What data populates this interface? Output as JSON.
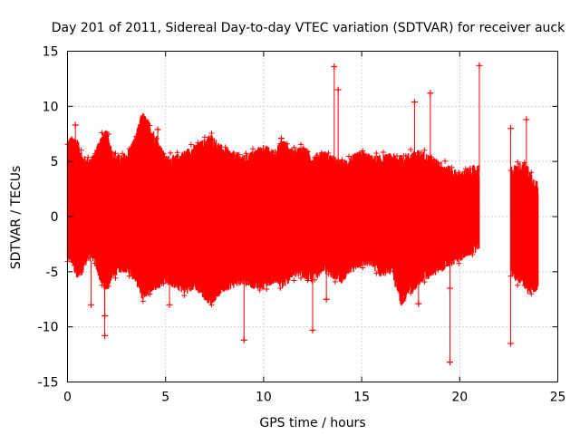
{
  "chart_data": {
    "type": "scatter",
    "title": "Day 201 of 2011, Sidereal Day-to-day VTEC variation (SDTVAR) for receiver auck",
    "xlabel": "GPS time / hours",
    "ylabel": "SDTVAR / TECUs",
    "xlim": [
      0,
      25
    ],
    "ylim": [
      -15,
      15
    ],
    "xticks": [
      "0",
      "5",
      "10",
      "15",
      "20",
      "25"
    ],
    "yticks": [
      "-15",
      "-10",
      "-5",
      "0",
      "5",
      "10",
      "15"
    ],
    "grid": true,
    "series_color": "#ff0000",
    "envelope": {
      "hours": [
        0.0,
        0.3,
        0.5,
        0.8,
        1.0,
        1.3,
        1.6,
        1.8,
        2.0,
        2.3,
        2.7,
        3.0,
        3.5,
        3.8,
        4.2,
        4.6,
        5.0,
        5.5,
        6.0,
        6.5,
        7.0,
        7.3,
        7.8,
        8.3,
        9.0,
        9.5,
        10.0,
        10.5,
        11.0,
        11.5,
        12.0,
        12.5,
        13.0,
        13.5,
        14.0,
        14.5,
        15.0,
        15.5,
        16.0,
        16.5,
        17.0,
        17.5,
        18.0,
        18.5,
        19.0,
        19.5,
        20.0,
        20.5,
        21.0
      ],
      "upper": [
        6.5,
        6.8,
        6.5,
        5.0,
        4.8,
        5.0,
        6.5,
        7.0,
        7.3,
        5.5,
        5.0,
        5.2,
        7.0,
        9.0,
        8.0,
        6.5,
        5.0,
        5.0,
        5.5,
        6.0,
        6.5,
        7.0,
        6.0,
        5.5,
        5.0,
        5.5,
        6.0,
        5.5,
        6.5,
        5.5,
        6.0,
        5.0,
        5.5,
        5.0,
        4.5,
        5.0,
        5.5,
        5.0,
        5.0,
        5.2,
        5.0,
        5.3,
        5.5,
        5.0,
        4.5,
        4.0,
        3.5,
        4.0,
        4.2
      ],
      "lower": [
        -3.5,
        -4.0,
        -5.5,
        -4.5,
        -3.5,
        -3.5,
        -5.0,
        -6.0,
        -6.2,
        -5.0,
        -4.5,
        -4.5,
        -5.5,
        -7.0,
        -6.5,
        -6.0,
        -5.5,
        -6.0,
        -6.5,
        -6.0,
        -7.0,
        -7.5,
        -6.5,
        -6.0,
        -5.5,
        -6.0,
        -6.0,
        -5.5,
        -6.0,
        -5.0,
        -5.0,
        -5.5,
        -4.5,
        -5.0,
        -5.5,
        -4.5,
        -4.0,
        -4.0,
        -5.0,
        -4.5,
        -7.5,
        -6.5,
        -5.5,
        -5.0,
        -4.5,
        -4.0,
        -3.5,
        -3.0,
        -2.5
      ]
    },
    "envelope2": {
      "hours": [
        22.6,
        22.9,
        23.2,
        23.5,
        23.8,
        24.0
      ],
      "upper": [
        4.0,
        4.2,
        4.5,
        4.0,
        3.0,
        2.5
      ],
      "lower": [
        -5.0,
        -5.5,
        -5.5,
        -6.5,
        -6.5,
        -6.0
      ]
    },
    "outliers": [
      {
        "x": 13.6,
        "y": 13.6
      },
      {
        "x": 21.0,
        "y": 13.7
      },
      {
        "x": 18.5,
        "y": 11.2
      },
      {
        "x": 23.4,
        "y": 8.8
      },
      {
        "x": 4.6,
        "y": 7.9
      },
      {
        "x": 0.4,
        "y": 8.3
      },
      {
        "x": 10.9,
        "y": 7.1
      },
      {
        "x": 13.8,
        "y": 11.5
      },
      {
        "x": 17.7,
        "y": 10.4
      },
      {
        "x": 22.6,
        "y": 8.0
      },
      {
        "x": 22.6,
        "y": -11.5
      },
      {
        "x": 19.5,
        "y": -13.2
      },
      {
        "x": 9.0,
        "y": -11.2
      },
      {
        "x": 12.5,
        "y": -10.3
      },
      {
        "x": 1.9,
        "y": -10.8
      },
      {
        "x": 5.2,
        "y": -8.0
      },
      {
        "x": 1.2,
        "y": -8.0
      },
      {
        "x": 17.9,
        "y": -7.9
      },
      {
        "x": 19.5,
        "y": -6.5
      },
      {
        "x": 1.9,
        "y": -9.0
      },
      {
        "x": 13.2,
        "y": -7.5
      }
    ]
  }
}
